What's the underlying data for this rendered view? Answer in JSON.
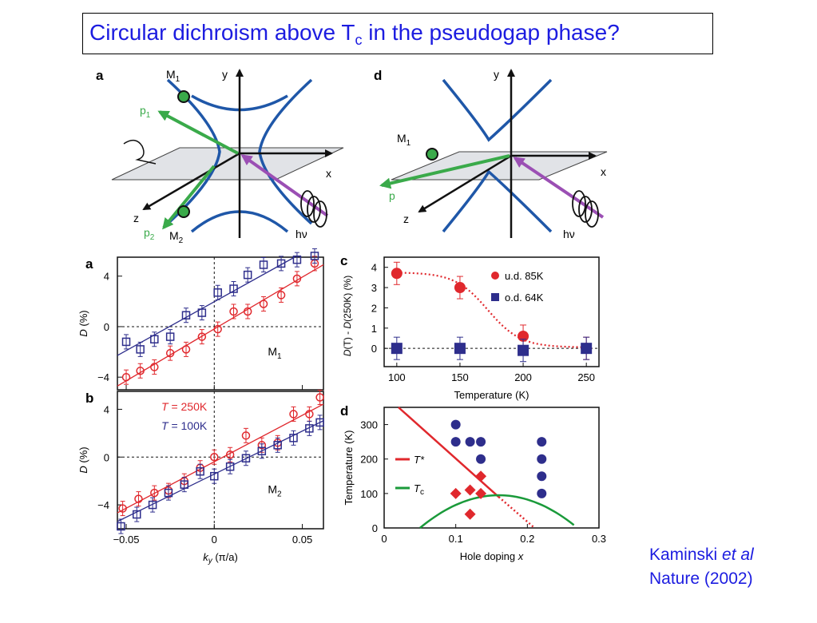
{
  "slide": {
    "title_pre": "Circular dichroism above T",
    "title_sub": "c",
    "title_post": " in the pseudogap phase?",
    "citation_author": "Kaminski ",
    "citation_etal": "et al",
    "citation_journal": "Nature (2002)"
  },
  "colors": {
    "title": "#1c1ce0",
    "red": "#e0282d",
    "blue": "#2e2e8c",
    "green": "#1a9a3a",
    "purple": "#9b4fb4",
    "fermi": "#1f57a8"
  },
  "schematics": {
    "a": {
      "label": "a",
      "y": "y",
      "x": "x",
      "z": "z",
      "m1": "M",
      "m1_sub": "1",
      "m2": "M",
      "m2_sub": "2",
      "p1": "p",
      "p1_sub": "1",
      "p2": "p",
      "p2_sub": "2",
      "hv": "hν"
    },
    "d": {
      "label": "d",
      "y": "y",
      "x": "x",
      "z": "z",
      "m1": "M",
      "m1_sub": "1",
      "p": "p",
      "hv": "hν"
    }
  },
  "chart_data": [
    {
      "panel": "a",
      "type": "scatter",
      "xlabel": "",
      "ylabel": "D (%)",
      "xlim": [
        -0.055,
        0.062
      ],
      "ylim": [
        -5,
        5.5
      ],
      "yticks": [
        "4",
        "0",
        "−4"
      ],
      "annotation": "M1",
      "series": [
        {
          "color": "red",
          "marker": "circle",
          "x": [
            -0.05,
            -0.042,
            -0.034,
            -0.025,
            -0.016,
            -0.007,
            0.002,
            0.011,
            0.019,
            0.028,
            0.038,
            0.047,
            0.057
          ],
          "y": [
            -4.0,
            -3.5,
            -3.2,
            -2.1,
            -1.8,
            -0.8,
            -0.2,
            1.2,
            1.2,
            1.8,
            2.5,
            3.8,
            5.0
          ]
        },
        {
          "color": "blue",
          "marker": "square",
          "x": [
            -0.05,
            -0.042,
            -0.034,
            -0.025,
            -0.016,
            -0.007,
            0.002,
            0.011,
            0.019,
            0.028,
            0.038,
            0.047,
            0.057
          ],
          "y": [
            -1.2,
            -1.8,
            -1.0,
            -0.8,
            0.9,
            1.1,
            2.7,
            3.0,
            4.1,
            4.9,
            5.0,
            5.3,
            5.6
          ]
        }
      ]
    },
    {
      "panel": "b",
      "type": "scatter",
      "xlabel": "ky (π/a)",
      "ylabel": "D (%)",
      "xlim": [
        -0.055,
        0.062
      ],
      "ylim": [
        -6,
        5.5
      ],
      "xticks": [
        "−0.05",
        "0",
        "0.05"
      ],
      "yticks": [
        "4",
        "0",
        "−4"
      ],
      "annotation": "M2",
      "legend": [
        "T = 250K",
        "T = 100K"
      ],
      "series": [
        {
          "name": "T = 250K",
          "color": "red",
          "marker": "circle",
          "x": [
            -0.052,
            -0.043,
            -0.034,
            -0.026,
            -0.017,
            -0.008,
            0.0,
            0.009,
            0.018,
            0.027,
            0.036,
            0.045,
            0.054,
            0.06
          ],
          "y": [
            -4.3,
            -3.5,
            -3.0,
            -2.8,
            -2.0,
            -0.9,
            0.0,
            0.2,
            1.8,
            1.0,
            1.2,
            3.6,
            3.6,
            5.0
          ]
        },
        {
          "name": "T = 100K",
          "color": "blue",
          "marker": "square",
          "x": [
            -0.053,
            -0.044,
            -0.035,
            -0.026,
            -0.017,
            -0.008,
            0.0,
            0.009,
            0.018,
            0.027,
            0.036,
            0.045,
            0.054,
            0.06
          ],
          "y": [
            -5.8,
            -4.8,
            -4.0,
            -3.0,
            -2.3,
            -1.2,
            -1.6,
            -0.8,
            -0.1,
            0.5,
            1.0,
            1.6,
            2.4,
            2.9
          ]
        }
      ]
    },
    {
      "panel": "c",
      "type": "scatter",
      "xlabel": "Temperature (K)",
      "ylabel": "D(T) - D(250K) (%)",
      "xlim": [
        90,
        260
      ],
      "ylim": [
        -0.9,
        4.5
      ],
      "xticks": [
        "100",
        "150",
        "200",
        "250"
      ],
      "yticks": [
        "4",
        "3",
        "2",
        "1",
        "0"
      ],
      "legend": [
        "u.d. 85K",
        "o.d. 64K"
      ],
      "series": [
        {
          "name": "u.d. 85K",
          "color": "red",
          "marker": "circle",
          "x": [
            100,
            150,
            200,
            250
          ],
          "y": [
            3.7,
            3.0,
            0.6,
            0.0
          ]
        },
        {
          "name": "o.d. 64K",
          "color": "blue",
          "marker": "square",
          "x": [
            100,
            150,
            200,
            250
          ],
          "y": [
            0.0,
            0.0,
            -0.1,
            0.0
          ]
        }
      ]
    },
    {
      "panel": "d",
      "type": "scatter",
      "xlabel": "Hole doping x",
      "ylabel": "Temperature (K)",
      "xlim": [
        0,
        0.3
      ],
      "ylim": [
        0,
        350
      ],
      "xticks": [
        "0",
        "0.1",
        "0.2",
        "0.3"
      ],
      "yticks": [
        "300",
        "200",
        "100",
        "0"
      ],
      "legend": [
        "T*",
        "Tc"
      ],
      "series": [
        {
          "color": "blue",
          "marker": "circle",
          "x": [
            0.1,
            0.1,
            0.12,
            0.135,
            0.135,
            0.22,
            0.22,
            0.22,
            0.22
          ],
          "y": [
            300,
            250,
            250,
            250,
            200,
            250,
            200,
            150,
            100
          ]
        },
        {
          "color": "red",
          "marker": "diamond",
          "x": [
            0.1,
            0.12,
            0.135,
            0.135,
            0.12
          ],
          "y": [
            100,
            110,
            100,
            150,
            40
          ]
        }
      ]
    }
  ]
}
